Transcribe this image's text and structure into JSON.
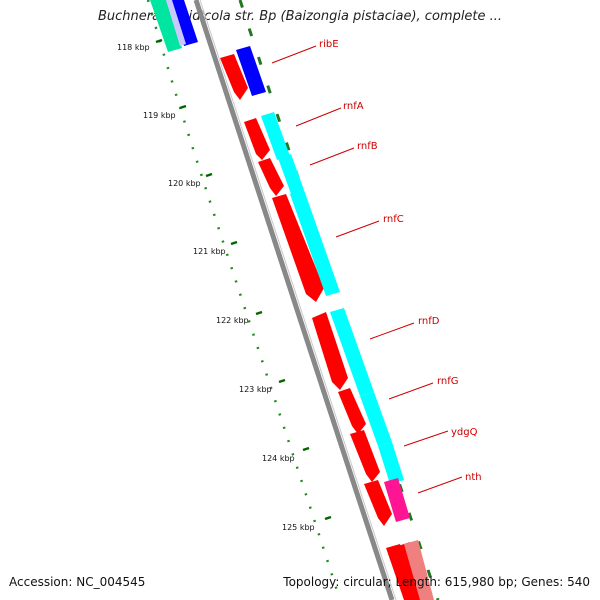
{
  "header": {
    "title": "Buchnera aphidicola str. Bp (Baizongia pistaciae), complete ..."
  },
  "footer": {
    "accession": "Accession: NC_004545",
    "summary": "Topology: circular; Length: 615,980 bp; Genes: 540"
  },
  "ticks": [
    {
      "label": "118 kbp",
      "kbp": 118
    },
    {
      "label": "119 kbp",
      "kbp": 119
    },
    {
      "label": "120 kbp",
      "kbp": 120
    },
    {
      "label": "121 kbp",
      "kbp": 121
    },
    {
      "label": "122 kbp",
      "kbp": 122
    },
    {
      "label": "123 kbp",
      "kbp": 123
    },
    {
      "label": "124 kbp",
      "kbp": 124
    },
    {
      "label": "125 kbp",
      "kbp": 125
    }
  ],
  "genes": [
    {
      "name": "ribE",
      "color": "#cc0000"
    },
    {
      "name": "rnfA",
      "color": "#cc0000"
    },
    {
      "name": "rnfB",
      "color": "#cc0000"
    },
    {
      "name": "rnfC",
      "color": "#cc0000"
    },
    {
      "name": "rnfD",
      "color": "#cc0000"
    },
    {
      "name": "rnfG",
      "color": "#cc0000"
    },
    {
      "name": "ydgQ",
      "color": "#cc0000"
    },
    {
      "name": "nth",
      "color": "#cc0000"
    }
  ],
  "colors": {
    "backbone": "#888888",
    "cds": "#ff0000",
    "cog_cyan": "#00ffff",
    "cog_blue": "#0000ff",
    "cog_magenta": "#ff1493",
    "cog_teal": "#00e5a0",
    "cog_pink": "#f08080",
    "tick": "#006600",
    "gc_skew": "#228b22"
  }
}
